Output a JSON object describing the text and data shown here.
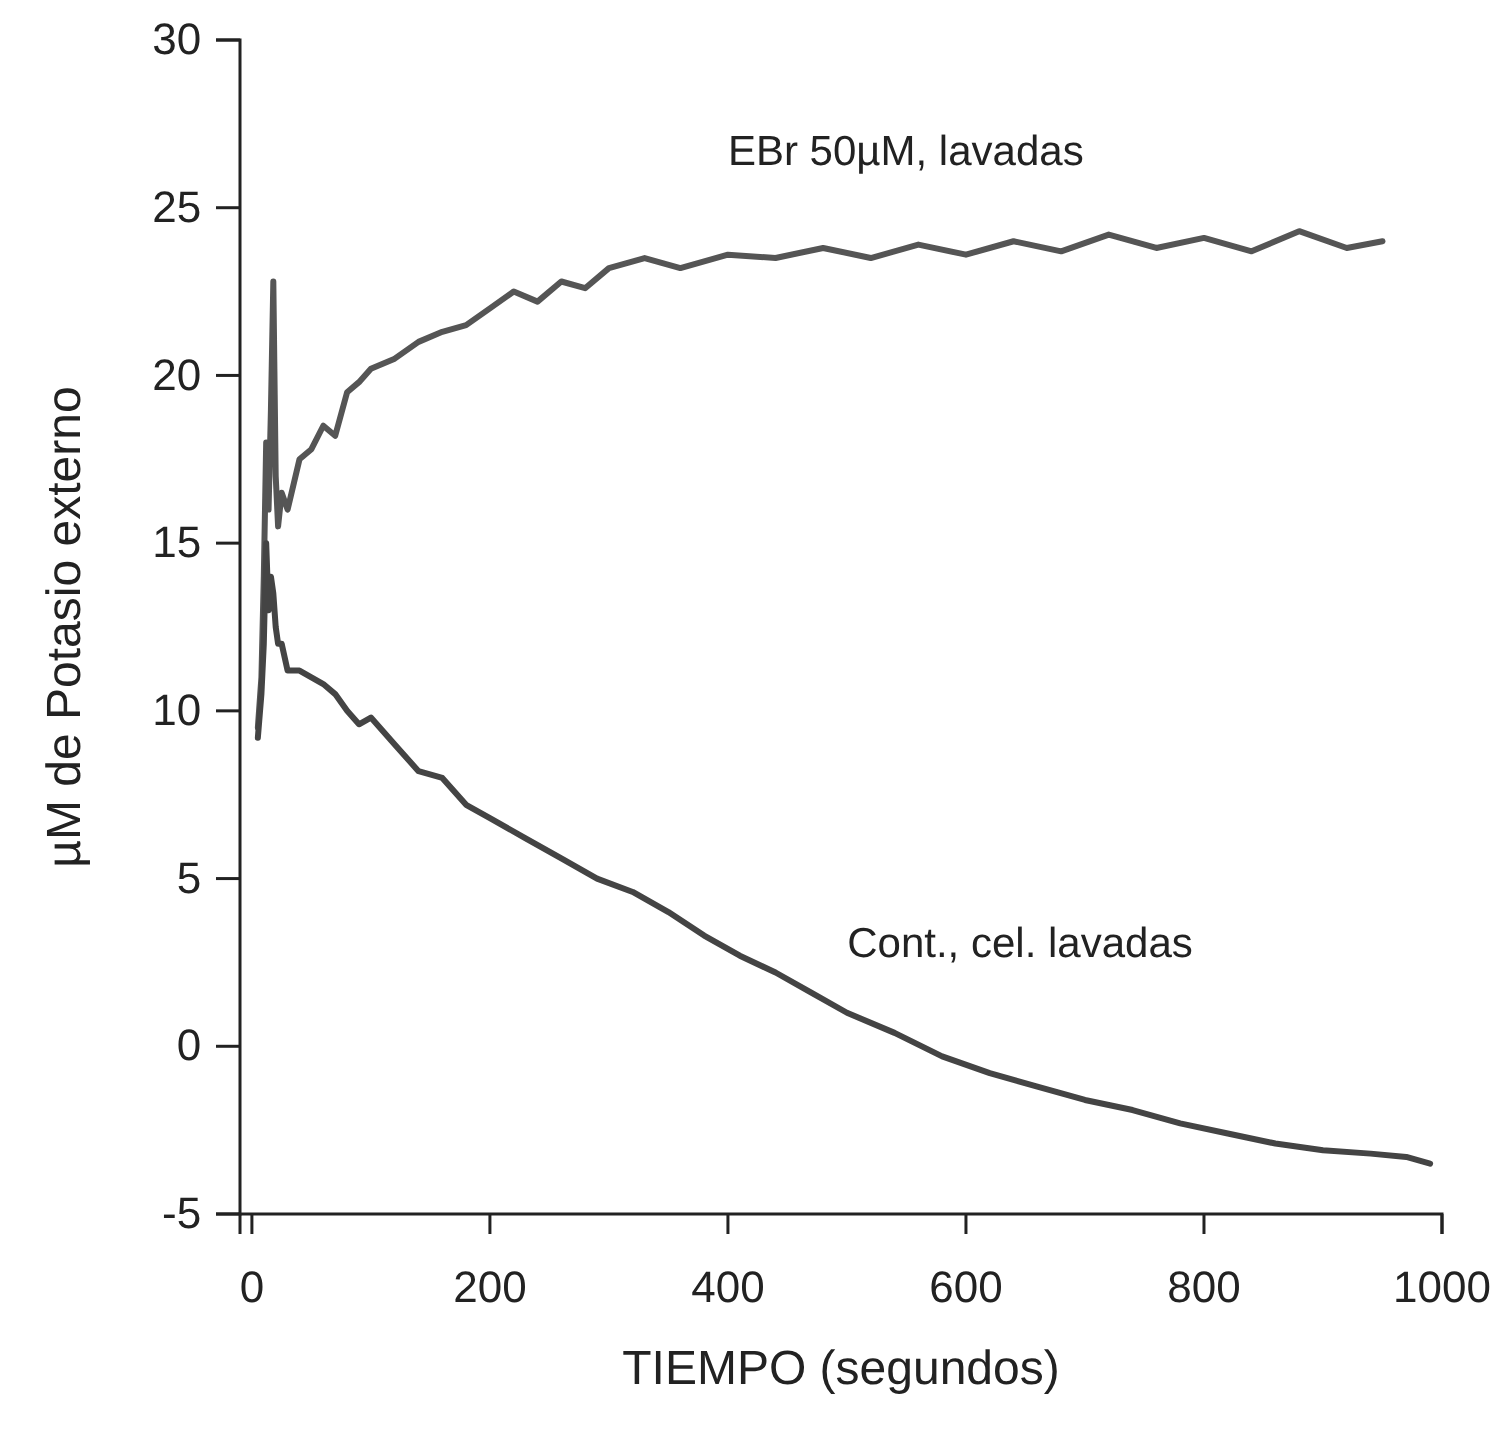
{
  "chart_data": {
    "type": "line",
    "xlabel": "TIEMPO (segundos)",
    "ylabel": "µM de Potasio externo",
    "xlim": [
      -10,
      1000
    ],
    "ylim": [
      -5,
      30
    ],
    "xticks": [
      0,
      200,
      400,
      600,
      800,
      1000
    ],
    "yticks": [
      -5,
      0,
      5,
      10,
      15,
      20,
      25,
      30
    ],
    "grid": false,
    "marker": "none",
    "line_style": "solid",
    "series": [
      {
        "name": "EBr 50µM, lavadas",
        "color": "#555555",
        "x": [
          5,
          8,
          10,
          12,
          14,
          16,
          18,
          20,
          22,
          25,
          30,
          40,
          50,
          60,
          70,
          80,
          90,
          100,
          120,
          140,
          160,
          180,
          200,
          220,
          240,
          260,
          280,
          300,
          330,
          360,
          400,
          440,
          480,
          520,
          560,
          600,
          640,
          680,
          720,
          760,
          800,
          840,
          880,
          920,
          950
        ],
        "values": [
          9.5,
          11,
          14,
          18,
          16,
          19,
          22.8,
          17,
          15.5,
          16.5,
          16,
          17.5,
          17.8,
          18.5,
          18.2,
          19.5,
          19.8,
          20.2,
          20.5,
          21,
          21.3,
          21.5,
          22,
          22.5,
          22.2,
          22.8,
          22.6,
          23.2,
          23.5,
          23.2,
          23.6,
          23.5,
          23.8,
          23.5,
          23.9,
          23.6,
          24,
          23.7,
          24.2,
          23.8,
          24.1,
          23.7,
          24.3,
          23.8,
          24
        ]
      },
      {
        "name": "Cont., cel. lavadas",
        "color": "#444444",
        "x": [
          5,
          8,
          10,
          12,
          14,
          16,
          18,
          20,
          22,
          25,
          30,
          40,
          50,
          60,
          70,
          80,
          90,
          100,
          120,
          140,
          160,
          180,
          200,
          230,
          260,
          290,
          320,
          350,
          380,
          410,
          440,
          470,
          500,
          540,
          580,
          620,
          660,
          700,
          740,
          780,
          820,
          860,
          900,
          940,
          970,
          990
        ],
        "values": [
          9.2,
          10.5,
          12,
          15,
          13,
          14,
          13.5,
          12.5,
          12,
          12,
          11.2,
          11.2,
          11,
          10.8,
          10.5,
          10,
          9.6,
          9.8,
          9,
          8.2,
          8,
          7.2,
          6.8,
          6.2,
          5.6,
          5,
          4.6,
          4,
          3.3,
          2.7,
          2.2,
          1.6,
          1,
          0.4,
          -0.3,
          -0.8,
          -1.2,
          -1.6,
          -1.9,
          -2.3,
          -2.6,
          -2.9,
          -3.1,
          -3.2,
          -3.3,
          -3.5
        ]
      }
    ]
  }
}
